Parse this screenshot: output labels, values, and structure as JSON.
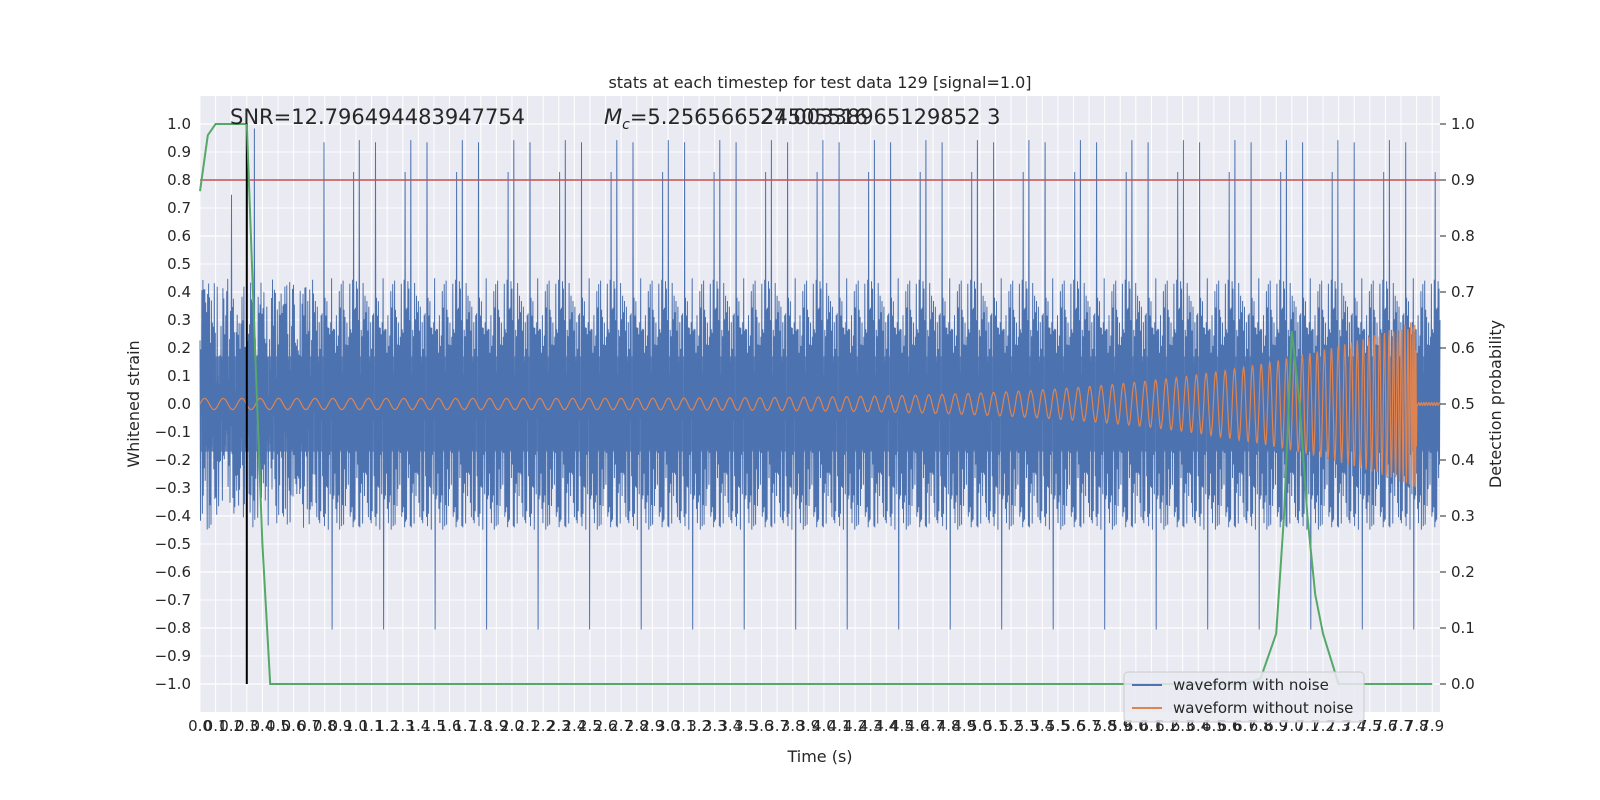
{
  "chart_data": {
    "type": "line",
    "title": "stats at each timestep for test data 129 [signal=1.0]",
    "xlabel": "Time (s)",
    "ylabel": "Whitened strain",
    "ylabel_right": "Detection probability",
    "xlim": [
      0.0,
      7.95
    ],
    "ylim": [
      -1.1,
      1.1
    ],
    "ylim_right": [
      -0.05,
      1.05
    ],
    "grid": true,
    "legend_position": "lower-right",
    "x_ticks": [
      0.0,
      0.1,
      0.2,
      0.3,
      0.4,
      0.5,
      0.6,
      0.7,
      0.8,
      0.9,
      1.0,
      1.1,
      1.2,
      1.3,
      1.4,
      1.5,
      1.6,
      1.7,
      1.8,
      1.9,
      2.0,
      2.1,
      2.2,
      2.3,
      2.4,
      2.5,
      2.6,
      2.7,
      2.8,
      2.9,
      3.0,
      3.1,
      3.2,
      3.3,
      3.4,
      3.5,
      3.6,
      3.7,
      3.8,
      3.9,
      4.0,
      4.1,
      4.2,
      4.3,
      4.4,
      4.5,
      4.6,
      4.7,
      4.8,
      4.9,
      5.0,
      5.1,
      5.2,
      5.3,
      5.4,
      5.5,
      5.6,
      5.7,
      5.8,
      5.9,
      6.0,
      6.1,
      6.2,
      6.3,
      6.4,
      6.5,
      6.6,
      6.7,
      6.8,
      6.9,
      7.0,
      7.1,
      7.2,
      7.3,
      7.4,
      7.5,
      7.6,
      7.7,
      7.8,
      7.9
    ],
    "y_ticks": [
      -1.0,
      -0.9,
      -0.8,
      -0.7,
      -0.6,
      -0.5,
      -0.4,
      -0.3,
      -0.2,
      -0.1,
      0.0,
      0.1,
      0.2,
      0.3,
      0.4,
      0.5,
      0.6,
      0.7,
      0.8,
      0.9,
      1.0
    ],
    "y_ticks_right": [
      0.0,
      0.1,
      0.2,
      0.3,
      0.4,
      0.5,
      0.6,
      0.7,
      0.8,
      0.9,
      1.0
    ],
    "annotations": {
      "snr": "SNR=12.796494483947754",
      "mc_prefix": "M",
      "mc_sub": "c",
      "mc_value": "=5.256566524505516",
      "mc_overlap": "27.00338965129852 3"
    },
    "threshold_right": 0.9,
    "marker_x": 0.3,
    "series": [
      {
        "name": "waveform with noise",
        "color": "#4c72b0",
        "envelope_pos": 0.45,
        "envelope_neg": -0.45,
        "peak_high": 0.99,
        "peak_low": -1.0
      },
      {
        "name": "waveform without noise",
        "color": "#dd8452",
        "amplitude_start": 0.02,
        "amplitude_end": 0.3,
        "merger_time": 7.8
      },
      {
        "name": "",
        "color": "#55a868",
        "x": [
          0.0,
          0.05,
          0.1,
          0.15,
          0.2,
          0.25,
          0.3,
          0.35,
          0.4,
          0.45,
          6.6,
          6.7,
          6.8,
          6.9,
          6.95,
          7.0,
          7.05,
          7.1,
          7.15,
          7.2,
          7.3,
          7.4,
          7.5,
          7.9
        ],
        "y": [
          0.88,
          0.98,
          1.0,
          1.0,
          1.0,
          1.0,
          1.0,
          0.62,
          0.25,
          0.0,
          0.0,
          0.0,
          0.01,
          0.09,
          0.3,
          0.63,
          0.5,
          0.3,
          0.16,
          0.09,
          0.0,
          0.0,
          0.0,
          0.0
        ]
      }
    ],
    "colors": {
      "axes_bg": "#eaeaf2",
      "grid": "#ffffff",
      "threshold": "#c44e52",
      "marker": "#000000",
      "text": "#262626"
    }
  }
}
